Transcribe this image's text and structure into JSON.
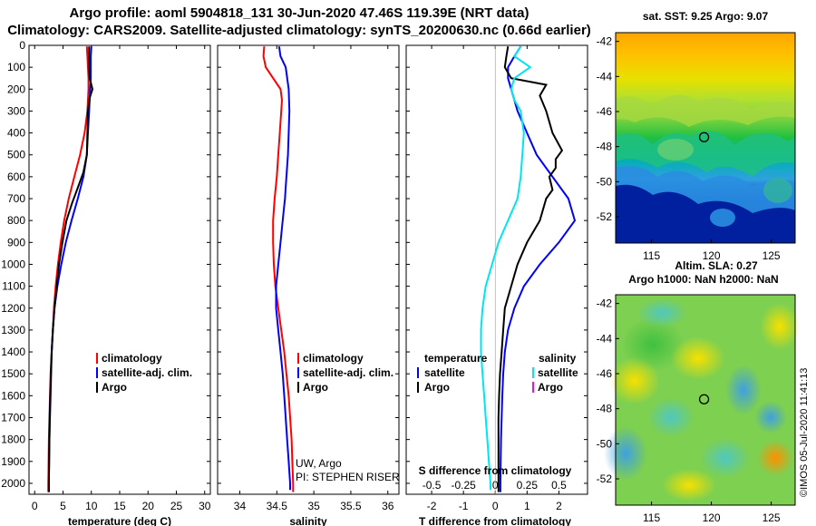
{
  "header": {
    "line1": "Argo profile: aoml 5904818_131 30-Jun-2020 47.46S 119.39E (NRT data)",
    "line2": "Climatology: CARS2009. Satellite-adjusted climatology: synTS_20200630.nc (0.66d earlier)"
  },
  "colors": {
    "climatology": "#ff0000",
    "satellite": "#0000ff",
    "argo": "#000000",
    "sal_satellite": "#00e5ee",
    "sal_argo": "#ff00ff"
  },
  "depth_axis": {
    "ticks": [
      "0",
      "100",
      "200",
      "300",
      "400",
      "500",
      "600",
      "700",
      "800",
      "900",
      "1000",
      "1100",
      "1200",
      "1300",
      "1400",
      "1500",
      "1600",
      "1700",
      "1800",
      "1900",
      "2000"
    ],
    "range": [
      0,
      2050
    ]
  },
  "chart_data": [
    {
      "type": "line",
      "xlabel": "temperature (deg C)",
      "xlim": [
        -1,
        31
      ],
      "ylim": [
        2050,
        0
      ],
      "xticks": [
        "0",
        "5",
        "10",
        "15",
        "20",
        "25",
        "30"
      ],
      "series": [
        {
          "name": "climatology",
          "color": "#ff0000",
          "points": [
            [
              9.2,
              5
            ],
            [
              9.3,
              50
            ],
            [
              9.4,
              100
            ],
            [
              9.5,
              150
            ],
            [
              9.5,
              200
            ],
            [
              9.3,
              300
            ],
            [
              8.8,
              400
            ],
            [
              8.0,
              500
            ],
            [
              7.0,
              600
            ],
            [
              6.0,
              700
            ],
            [
              5.2,
              800
            ],
            [
              4.6,
              900
            ],
            [
              4.1,
              1000
            ],
            [
              3.7,
              1100
            ],
            [
              3.4,
              1200
            ],
            [
              3.2,
              1300
            ],
            [
              3.0,
              1400
            ],
            [
              2.8,
              1500
            ],
            [
              2.7,
              1600
            ],
            [
              2.6,
              1700
            ],
            [
              2.5,
              1800
            ],
            [
              2.45,
              1900
            ],
            [
              2.4,
              2000
            ],
            [
              2.4,
              2040
            ]
          ]
        },
        {
          "name": "satellite-adj. clim.",
          "color": "#0000ff",
          "points": [
            [
              10.0,
              5
            ],
            [
              9.9,
              50
            ],
            [
              9.9,
              100
            ],
            [
              9.9,
              150
            ],
            [
              9.8,
              200
            ],
            [
              9.6,
              300
            ],
            [
              9.4,
              400
            ],
            [
              9.2,
              500
            ],
            [
              8.6,
              600
            ],
            [
              7.6,
              700
            ],
            [
              6.5,
              800
            ],
            [
              5.5,
              900
            ],
            [
              4.7,
              1000
            ],
            [
              4.0,
              1100
            ],
            [
              3.5,
              1200
            ],
            [
              3.2,
              1300
            ],
            [
              3.0,
              1400
            ],
            [
              2.9,
              1500
            ],
            [
              2.8,
              1600
            ],
            [
              2.7,
              1700
            ],
            [
              2.6,
              1800
            ],
            [
              2.55,
              1900
            ],
            [
              2.5,
              2000
            ],
            [
              2.5,
              2040
            ]
          ]
        },
        {
          "name": "Argo",
          "color": "#000000",
          "points": [
            [
              9.6,
              5
            ],
            [
              9.6,
              50
            ],
            [
              9.6,
              100
            ],
            [
              9.7,
              150
            ],
            [
              10.0,
              180
            ],
            [
              10.2,
              200
            ],
            [
              9.7,
              240
            ],
            [
              9.4,
              300
            ],
            [
              9.3,
              400
            ],
            [
              9.2,
              500
            ],
            [
              8.6,
              580
            ],
            [
              7.6,
              650
            ],
            [
              6.6,
              720
            ],
            [
              5.6,
              800
            ],
            [
              4.9,
              900
            ],
            [
              4.3,
              1000
            ],
            [
              3.9,
              1100
            ],
            [
              3.5,
              1200
            ],
            [
              3.2,
              1300
            ],
            [
              3.0,
              1400
            ],
            [
              2.85,
              1500
            ],
            [
              2.75,
              1600
            ],
            [
              2.65,
              1700
            ],
            [
              2.6,
              1800
            ],
            [
              2.55,
              1900
            ],
            [
              2.5,
              2000
            ],
            [
              2.5,
              2040
            ]
          ]
        }
      ],
      "legend": [
        {
          "label": "climatology",
          "color": "#ff0000"
        },
        {
          "label": "satellite-adj. clim.",
          "color": "#0000ff"
        },
        {
          "label": "Argo",
          "color": "#000000"
        }
      ]
    },
    {
      "type": "line",
      "xlabel": "salinity",
      "xlim": [
        33.7,
        36.15
      ],
      "ylim": [
        2050,
        0
      ],
      "xticks": [
        "34",
        "34.5",
        "35",
        "35.5",
        "36"
      ],
      "series": [
        {
          "name": "climatology",
          "color": "#ff0000",
          "points": [
            [
              34.33,
              5
            ],
            [
              34.32,
              50
            ],
            [
              34.35,
              100
            ],
            [
              34.45,
              150
            ],
            [
              34.55,
              200
            ],
            [
              34.57,
              250
            ],
            [
              34.56,
              300
            ],
            [
              34.54,
              400
            ],
            [
              34.52,
              500
            ],
            [
              34.5,
              600
            ],
            [
              34.47,
              700
            ],
            [
              34.45,
              800
            ],
            [
              34.45,
              900
            ],
            [
              34.46,
              1000
            ],
            [
              34.48,
              1100
            ],
            [
              34.52,
              1200
            ],
            [
              34.56,
              1300
            ],
            [
              34.6,
              1400
            ],
            [
              34.63,
              1500
            ],
            [
              34.66,
              1600
            ],
            [
              34.68,
              1700
            ],
            [
              34.7,
              1800
            ],
            [
              34.71,
              1900
            ],
            [
              34.72,
              2000
            ],
            [
              34.72,
              2040
            ]
          ]
        },
        {
          "name": "satellite-adj. clim.",
          "color": "#0000ff",
          "points": [
            [
              34.53,
              5
            ],
            [
              34.55,
              50
            ],
            [
              34.62,
              100
            ],
            [
              34.66,
              200
            ],
            [
              34.67,
              300
            ],
            [
              34.66,
              400
            ],
            [
              34.65,
              500
            ],
            [
              34.63,
              600
            ],
            [
              34.61,
              700
            ],
            [
              34.58,
              800
            ],
            [
              34.55,
              900
            ],
            [
              34.52,
              1000
            ],
            [
              34.49,
              1100
            ],
            [
              34.49,
              1200
            ],
            [
              34.52,
              1300
            ],
            [
              34.55,
              1400
            ],
            [
              34.58,
              1500
            ],
            [
              34.6,
              1600
            ],
            [
              34.62,
              1700
            ],
            [
              34.64,
              1800
            ],
            [
              34.66,
              1900
            ],
            [
              34.68,
              2000
            ],
            [
              34.68,
              2030
            ]
          ]
        }
      ],
      "legend": [
        {
          "label": "climatology",
          "color": "#ff0000"
        },
        {
          "label": "satellite-adj. clim.",
          "color": "#0000ff"
        },
        {
          "label": "Argo",
          "color": "#000000"
        }
      ],
      "notes": [
        "UW, Argo",
        "PI: STEPHEN RISER"
      ]
    },
    {
      "type": "line",
      "xlabel": "T difference from climatology",
      "x2label": "S difference from climatology",
      "xlim": [
        -2.8,
        2.9
      ],
      "ylim": [
        2050,
        0
      ],
      "xticks": [
        "-2",
        "-1",
        "0",
        "1",
        "2"
      ],
      "x2ticks": [
        "-0.5",
        "-0.25",
        "0",
        "0.25",
        "0.5"
      ],
      "series": [
        {
          "name": "temperature satellite",
          "color": "#0000ff",
          "points": [
            [
              0.8,
              5
            ],
            [
              0.6,
              50
            ],
            [
              0.4,
              100
            ],
            [
              0.4,
              150
            ],
            [
              0.5,
              200
            ],
            [
              0.7,
              300
            ],
            [
              1.0,
              400
            ],
            [
              1.3,
              500
            ],
            [
              1.8,
              600
            ],
            [
              2.3,
              700
            ],
            [
              2.5,
              800
            ],
            [
              2.0,
              900
            ],
            [
              1.4,
              1000
            ],
            [
              0.9,
              1100
            ],
            [
              0.6,
              1200
            ],
            [
              0.4,
              1300
            ],
            [
              0.3,
              1400
            ],
            [
              0.25,
              1500
            ],
            [
              0.22,
              1600
            ],
            [
              0.2,
              1700
            ],
            [
              0.18,
              1800
            ],
            [
              0.17,
              1900
            ],
            [
              0.16,
              2000
            ],
            [
              0.16,
              2040
            ]
          ]
        },
        {
          "name": "temperature Argo",
          "color": "#000000",
          "points": [
            [
              0.4,
              5
            ],
            [
              0.35,
              50
            ],
            [
              0.3,
              100
            ],
            [
              0.5,
              150
            ],
            [
              1.6,
              180
            ],
            [
              1.4,
              230
            ],
            [
              1.6,
              300
            ],
            [
              1.8,
              400
            ],
            [
              2.1,
              480
            ],
            [
              1.9,
              520
            ],
            [
              1.9,
              560
            ],
            [
              1.7,
              600
            ],
            [
              1.8,
              660
            ],
            [
              1.6,
              700
            ],
            [
              1.4,
              800
            ],
            [
              1.0,
              900
            ],
            [
              0.7,
              1000
            ],
            [
              0.5,
              1100
            ],
            [
              0.3,
              1200
            ],
            [
              0.25,
              1300
            ],
            [
              0.2,
              1400
            ],
            [
              0.15,
              1500
            ],
            [
              0.12,
              1600
            ],
            [
              0.1,
              1700
            ],
            [
              0.1,
              1800
            ],
            [
              0.1,
              1900
            ],
            [
              0.1,
              2000
            ],
            [
              0.1,
              2040
            ]
          ]
        },
        {
          "name": "salinity satellite",
          "color": "#00e5ee",
          "points": [
            [
              0.8,
              5
            ],
            [
              0.6,
              50
            ],
            [
              1.1,
              100
            ],
            [
              0.6,
              150
            ],
            [
              0.5,
              200
            ],
            [
              0.6,
              250
            ],
            [
              0.8,
              300
            ],
            [
              0.9,
              400
            ],
            [
              0.85,
              500
            ],
            [
              0.8,
              600
            ],
            [
              0.7,
              700
            ],
            [
              0.4,
              800
            ],
            [
              0.1,
              900
            ],
            [
              -0.1,
              1000
            ],
            [
              -0.3,
              1100
            ],
            [
              -0.4,
              1200
            ],
            [
              -0.45,
              1300
            ],
            [
              -0.45,
              1400
            ],
            [
              -0.4,
              1500
            ],
            [
              -0.35,
              1600
            ],
            [
              -0.3,
              1700
            ],
            [
              -0.25,
              1800
            ],
            [
              -0.2,
              1900
            ],
            [
              -0.15,
              2000
            ],
            [
              -0.15,
              2030
            ]
          ]
        }
      ],
      "legend": {
        "temperature_heading": "temperature",
        "salinity_heading": "salinity",
        "temperature": [
          {
            "label": "satellite",
            "color": "#0000ff"
          },
          {
            "label": "Argo",
            "color": "#000000"
          }
        ],
        "salinity": [
          {
            "label": "satellite",
            "color": "#00e5ee"
          },
          {
            "label": "Argo",
            "color": "#ff00ff"
          }
        ]
      }
    }
  ],
  "maps": [
    {
      "title": "sat. SST: 9.25 Argo: 9.07",
      "xticks": [
        "115",
        "120",
        "125"
      ],
      "yticks": [
        "-42",
        "-44",
        "-46",
        "-48",
        "-50",
        "-52"
      ],
      "marker": {
        "lon": 119.39,
        "lat": -47.46
      }
    },
    {
      "title": "Altim. SLA: 0.27",
      "subtitle": "Argo h1000: NaN h2000: NaN",
      "xticks": [
        "115",
        "120",
        "125"
      ],
      "yticks": [
        "-42",
        "-44",
        "-46",
        "-48",
        "-50",
        "-52"
      ],
      "marker": {
        "lon": 119.39,
        "lat": -47.46
      }
    }
  ],
  "stamp": "©IMOS 05-Jul-2020 11:41:13"
}
